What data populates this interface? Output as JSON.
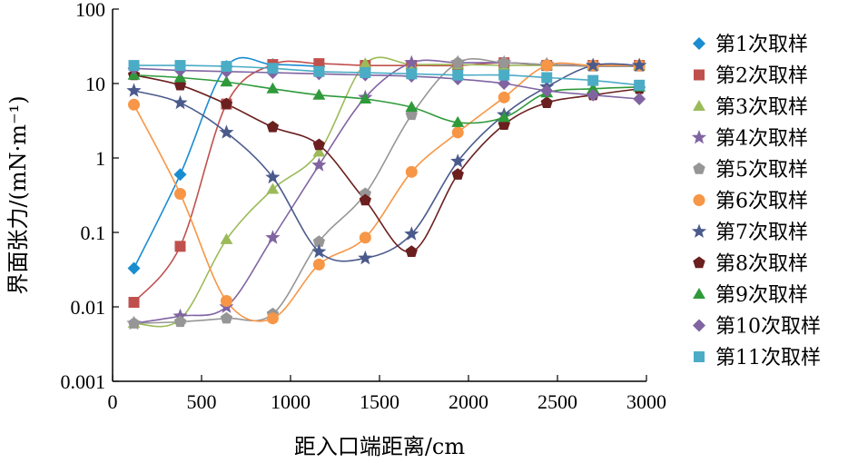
{
  "chart_data": {
    "type": "line",
    "xlabel": "距入口端距离/cm",
    "ylabel": "界面张力/(mN·m⁻¹)",
    "xlim": [
      0,
      3000
    ],
    "ylim": [
      0.001,
      100
    ],
    "yscale": "log",
    "x_ticks": [
      "0",
      "500",
      "1000",
      "1500",
      "2000",
      "2500",
      "3000"
    ],
    "y_ticks": [
      "0.001",
      "0.01",
      "0.1",
      "1",
      "10",
      "100"
    ],
    "grid": false,
    "legend_position": "right",
    "series": [
      {
        "name": "第1次取样",
        "color": "#1a8cd0",
        "marker": "diamond",
        "points": [
          [
            120,
            0.033
          ],
          [
            380,
            0.6
          ],
          [
            640,
            17
          ],
          [
            900,
            18
          ],
          [
            1160,
            17
          ]
        ]
      },
      {
        "name": "第2次取样",
        "color": "#c0504d",
        "marker": "square",
        "points": [
          [
            120,
            0.0115
          ],
          [
            380,
            0.065
          ],
          [
            640,
            5.3
          ],
          [
            900,
            18
          ],
          [
            1160,
            18.5
          ],
          [
            1420,
            17.5
          ],
          [
            1680,
            17.5
          ],
          [
            1940,
            17.5
          ],
          [
            2200,
            19
          ],
          [
            2440,
            17.5
          ],
          [
            2700,
            17.5
          ],
          [
            2960,
            17.5
          ]
        ]
      },
      {
        "name": "第3次取样",
        "color": "#9bbb59",
        "marker": "triangle",
        "points": [
          [
            120,
            0.006
          ],
          [
            380,
            0.0068
          ],
          [
            640,
            0.08
          ],
          [
            900,
            0.38
          ],
          [
            1160,
            1.2
          ],
          [
            1420,
            18.5
          ],
          [
            1680,
            18
          ],
          [
            1940,
            18
          ],
          [
            2200,
            17.5
          ],
          [
            2440,
            17.5
          ],
          [
            2700,
            17.5
          ],
          [
            2960,
            17.5
          ]
        ]
      },
      {
        "name": "第4次取样",
        "color": "#8064a2",
        "marker": "star",
        "points": [
          [
            120,
            0.006
          ],
          [
            380,
            0.0075
          ],
          [
            640,
            0.01
          ],
          [
            900,
            0.085
          ],
          [
            1160,
            0.8
          ],
          [
            1420,
            6.5
          ],
          [
            1680,
            19
          ],
          [
            1940,
            19
          ],
          [
            2200,
            19
          ],
          [
            2440,
            18
          ],
          [
            2700,
            17.5
          ],
          [
            2960,
            17.5
          ]
        ]
      },
      {
        "name": "第5次取样",
        "color": "#969696",
        "marker": "pentagon",
        "points": [
          [
            120,
            0.006
          ],
          [
            380,
            0.0063
          ],
          [
            640,
            0.007
          ],
          [
            900,
            0.008
          ],
          [
            1160,
            0.075
          ],
          [
            1420,
            0.33
          ],
          [
            1680,
            3.8
          ],
          [
            1940,
            19
          ],
          [
            2200,
            19
          ],
          [
            2440,
            18
          ],
          [
            2700,
            17
          ],
          [
            2960,
            17
          ]
        ]
      },
      {
        "name": "第6次取样",
        "color": "#f79646",
        "marker": "circle",
        "points": [
          [
            120,
            5.2
          ],
          [
            380,
            0.33
          ],
          [
            640,
            0.012
          ],
          [
            900,
            0.007
          ],
          [
            1160,
            0.037
          ],
          [
            1420,
            0.085
          ],
          [
            1680,
            0.65
          ],
          [
            1940,
            2.2
          ],
          [
            2200,
            6.5
          ],
          [
            2440,
            17.5
          ],
          [
            2700,
            17.5
          ],
          [
            2960,
            17.5
          ]
        ]
      },
      {
        "name": "第7次取样",
        "color": "#4a5a8c",
        "marker": "star",
        "points": [
          [
            120,
            8
          ],
          [
            380,
            5.5
          ],
          [
            640,
            2.2
          ],
          [
            900,
            0.55
          ],
          [
            1160,
            0.055
          ],
          [
            1420,
            0.045
          ],
          [
            1680,
            0.095
          ],
          [
            1940,
            0.9
          ],
          [
            2200,
            3.8
          ],
          [
            2440,
            9
          ],
          [
            2700,
            17.5
          ],
          [
            2960,
            17.5
          ]
        ]
      },
      {
        "name": "第8次取样",
        "color": "#6b1f1f",
        "marker": "pentagon",
        "points": [
          [
            120,
            13
          ],
          [
            380,
            9.5
          ],
          [
            640,
            5.3
          ],
          [
            900,
            2.6
          ],
          [
            1160,
            1.5
          ],
          [
            1420,
            0.27
          ],
          [
            1680,
            0.055
          ],
          [
            1940,
            0.6
          ],
          [
            2200,
            2.8
          ],
          [
            2440,
            5.5
          ],
          [
            2700,
            7
          ],
          [
            2960,
            8.5
          ]
        ]
      },
      {
        "name": "第9次取样",
        "color": "#2e9a3a",
        "marker": "triangle",
        "points": [
          [
            120,
            13
          ],
          [
            380,
            12
          ],
          [
            640,
            10.5
          ],
          [
            900,
            8.5
          ],
          [
            1160,
            7
          ],
          [
            1420,
            6.2
          ],
          [
            1680,
            4.8
          ],
          [
            1940,
            3
          ],
          [
            2200,
            3.5
          ],
          [
            2440,
            7.5
          ],
          [
            2700,
            8.5
          ],
          [
            2960,
            9
          ]
        ]
      },
      {
        "name": "第10次取样",
        "color": "#8064a2",
        "marker": "diamond",
        "points": [
          [
            120,
            16
          ],
          [
            380,
            15
          ],
          [
            640,
            14.5
          ],
          [
            900,
            14
          ],
          [
            1160,
            13.5
          ],
          [
            1420,
            13
          ],
          [
            1680,
            12.5
          ],
          [
            1940,
            11.5
          ],
          [
            2200,
            10
          ],
          [
            2440,
            8
          ],
          [
            2700,
            7
          ],
          [
            2960,
            6.2
          ]
        ]
      },
      {
        "name": "第11次取样",
        "color": "#4bacc6",
        "marker": "square",
        "points": [
          [
            120,
            17.5
          ],
          [
            380,
            17.5
          ],
          [
            640,
            17
          ],
          [
            900,
            16
          ],
          [
            1160,
            14.5
          ],
          [
            1420,
            14
          ],
          [
            1680,
            13.5
          ],
          [
            1940,
            13
          ],
          [
            2200,
            13
          ],
          [
            2440,
            12
          ],
          [
            2700,
            11
          ],
          [
            2960,
            9.5
          ]
        ]
      }
    ]
  }
}
